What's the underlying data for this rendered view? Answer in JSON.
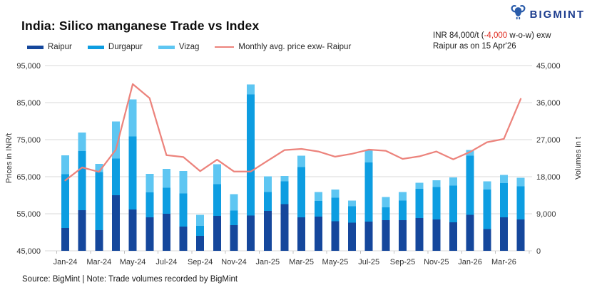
{
  "header": {
    "title": "India: Silico manganese Trade vs Index",
    "annotation": {
      "part1": "INR 84,000/t (",
      "highlight": "-4,000",
      "part2": " w-o-w) exw",
      "line2": "Raipur as on 15 Apr'26"
    }
  },
  "logo": {
    "text": "BIGMINT"
  },
  "footer": {
    "source_note": "Source: BigMint | Note: Trade volumes recorded by BigMint"
  },
  "colors": {
    "raipur": "#15479c",
    "durgapur": "#0d9de1",
    "vizag": "#5ec6f2",
    "price_line": "#ec837c",
    "gridline": "#d9d9d9",
    "tick": "#c0c0c0",
    "axis_text": "#333333",
    "accent_red": "#e02b20",
    "logo_blue": "#1d3d8f"
  },
  "chart_data": {
    "type": "bar",
    "stacked": true,
    "grid": true,
    "legend_position": "top-left",
    "bars_axis": "right",
    "line_axis": "left",
    "categories": [
      "Jan-24",
      "Feb-24",
      "Mar-24",
      "Apr-24",
      "May-24",
      "Jun-24",
      "Jul-24",
      "Aug-24",
      "Sep-24",
      "Oct-24",
      "Nov-24",
      "Dec-24",
      "Jan-25",
      "Feb-25",
      "Mar-25",
      "Apr-25",
      "May-25",
      "Jun-25",
      "Jul-25",
      "Aug-25",
      "Sep-25",
      "Oct-25",
      "Nov-25",
      "Dec-25",
      "Jan-26",
      "Feb-26",
      "Mar-26",
      "Apr-26"
    ],
    "x_label_every": 2,
    "series": [
      {
        "name": "Raipur",
        "color_key": "raipur",
        "values": [
          5500,
          9900,
          5000,
          13500,
          10000,
          8100,
          9000,
          5900,
          3600,
          8500,
          6200,
          8600,
          9700,
          11300,
          8100,
          8300,
          7200,
          6800,
          7100,
          7400,
          7400,
          8000,
          7600,
          6900,
          8700,
          5300,
          8100,
          7600
        ]
      },
      {
        "name": "Durgapur",
        "color_key": "durgapur",
        "values": [
          13100,
          14300,
          14100,
          8900,
          17800,
          6100,
          6300,
          8000,
          2500,
          7700,
          3600,
          29400,
          4600,
          5600,
          12200,
          3800,
          5700,
          4000,
          14400,
          3200,
          4800,
          7100,
          7900,
          8900,
          14400,
          9600,
          8300,
          8100
        ]
      },
      {
        "name": "Vizag",
        "color_key": "vizag",
        "values": [
          4600,
          4500,
          2000,
          9000,
          9000,
          4500,
          4600,
          5500,
          2600,
          4800,
          4000,
          2400,
          3800,
          1300,
          2800,
          2200,
          2000,
          1400,
          2900,
          2500,
          2100,
          1400,
          1600,
          2000,
          1400,
          2000,
          2000,
          2000
        ]
      }
    ],
    "line": {
      "name": "Monthly avg. price exw- Raipur",
      "color_key": "price_line",
      "values": [
        64000,
        67500,
        66300,
        72300,
        90000,
        86200,
        70800,
        70300,
        66500,
        69600,
        66400,
        66400,
        69300,
        72200,
        72500,
        71800,
        70400,
        71200,
        72300,
        72000,
        69800,
        70500,
        71800,
        69700,
        71700,
        74300,
        75200,
        86000
      ]
    },
    "left_axis": {
      "label": "Prices in INR/t",
      "min": 45000,
      "max": 95000,
      "step": 10000,
      "ticks": [
        "95,000",
        "85,000",
        "75,000",
        "65,000",
        "55,000",
        "45,000"
      ]
    },
    "right_axis": {
      "label": "Volumes in t",
      "min": 0,
      "max": 45000,
      "step": 9000,
      "ticks": [
        "45,000",
        "36,000",
        "27,000",
        "18,000",
        "9,000",
        "0"
      ]
    }
  }
}
